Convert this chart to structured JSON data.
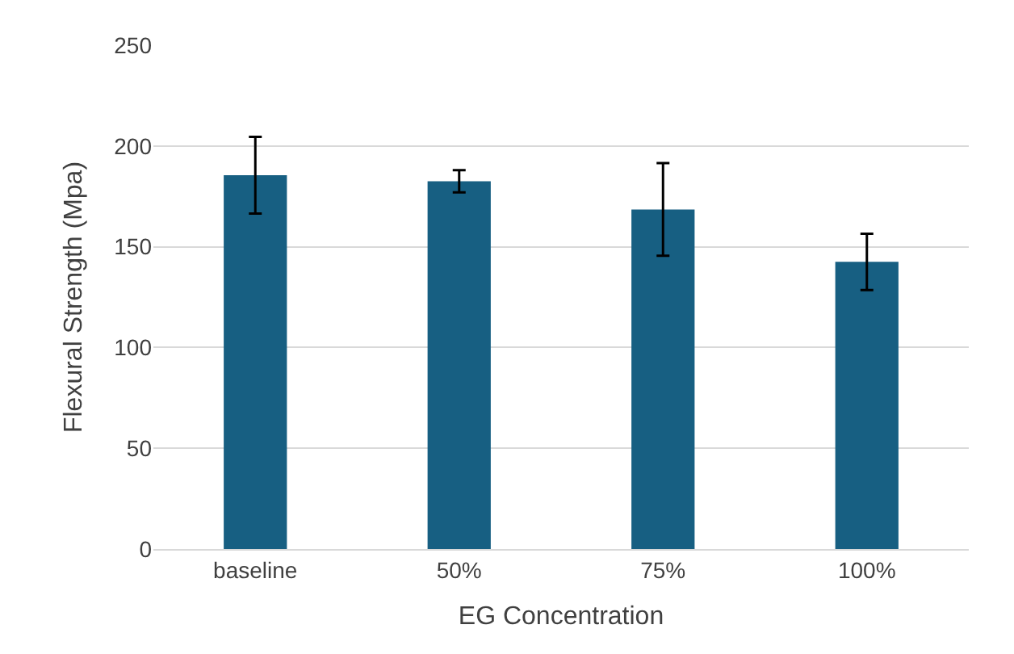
{
  "chart_data": {
    "type": "bar",
    "xlabel": "EG Concentration",
    "ylabel": "Flexural Strength (Mpa)",
    "categories": [
      "baseline",
      "50%",
      "75%",
      "100%"
    ],
    "series": [
      {
        "color": "#175f82",
        "values": [
          185.5,
          182.5,
          168.5,
          142.5
        ],
        "errors": [
          19,
          5.5,
          23,
          14
        ]
      }
    ],
    "ylim": [
      0,
      250
    ],
    "yticks": [
      0,
      50,
      100,
      150,
      200,
      250
    ],
    "grid": "y"
  }
}
